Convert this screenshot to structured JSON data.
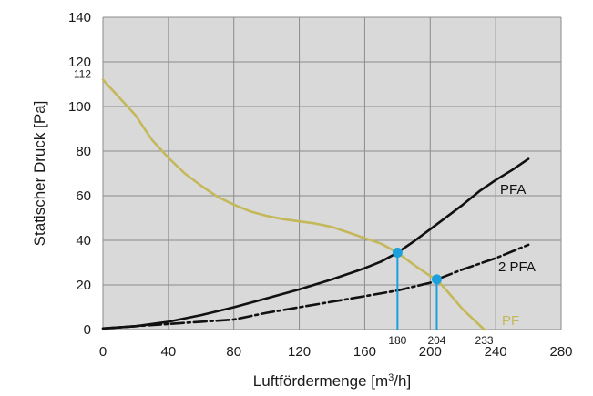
{
  "chart_data": {
    "type": "line",
    "xlabel": "Luftfördermenge [m³/h]",
    "ylabel": "Statischer Druck [Pa]",
    "xlim": [
      0,
      280
    ],
    "ylim": [
      0,
      140
    ],
    "x_ticks": [
      "0",
      "40",
      "80",
      "120",
      "160",
      "200",
      "240",
      "280"
    ],
    "y_ticks": [
      "0",
      "20",
      "40",
      "60",
      "80",
      "100",
      "120",
      "140"
    ],
    "grid": true,
    "colors": {
      "plot_bg": "#d9d9d9",
      "grid": "#8c8c8c",
      "pf_curve": "#c4b85a",
      "system_curve": "#111111",
      "marker": "#1aa0dc"
    },
    "series": [
      {
        "name": "PF",
        "style": "solid",
        "x": [
          0,
          10,
          20,
          30,
          40,
          50,
          60,
          70,
          80,
          90,
          100,
          110,
          120,
          130,
          140,
          150,
          160,
          170,
          180,
          190,
          200,
          204,
          210,
          220,
          233
        ],
        "y": [
          112,
          104,
          96,
          85,
          77,
          70,
          64.5,
          59.5,
          56,
          53,
          51,
          49.5,
          48.5,
          47.5,
          46,
          43.5,
          41,
          38.5,
          34.5,
          29,
          24,
          22.5,
          17.5,
          9,
          0
        ]
      },
      {
        "name": "PFA",
        "style": "solid",
        "x": [
          0,
          20,
          40,
          60,
          80,
          100,
          120,
          140,
          160,
          170,
          180,
          190,
          200,
          210,
          220,
          230,
          240,
          250,
          260
        ],
        "y": [
          0.5,
          1.5,
          3.5,
          6.5,
          10,
          14,
          18,
          22.5,
          27.5,
          30.5,
          34.5,
          39.5,
          45,
          50.5,
          56,
          62,
          67,
          71.5,
          76.5
        ]
      },
      {
        "name": "2 PFA",
        "style": "dashdot",
        "x": [
          0,
          20,
          40,
          60,
          80,
          100,
          120,
          140,
          160,
          180,
          200,
          204,
          220,
          240,
          260
        ],
        "y": [
          0.5,
          1.5,
          2.5,
          3.5,
          4.5,
          7.5,
          10,
          12.5,
          15,
          17.5,
          21,
          22.5,
          27,
          32,
          38
        ]
      }
    ],
    "operating_points": [
      {
        "x": 180,
        "y": 34.5,
        "label": "180"
      },
      {
        "x": 204,
        "y": 22.5,
        "label": "204"
      }
    ],
    "annotations": {
      "y_max_label": "112",
      "x_max_label": "233"
    }
  }
}
